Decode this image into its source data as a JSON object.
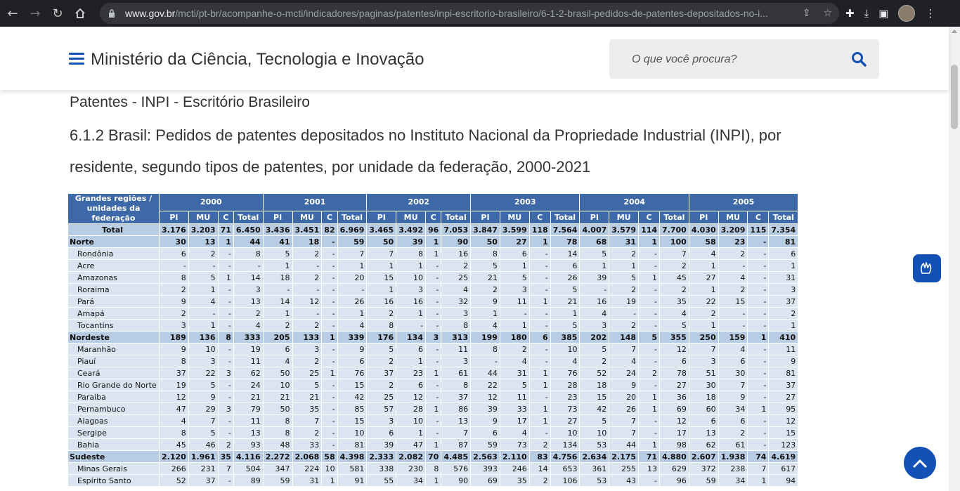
{
  "browser": {
    "url_host": "www.gov.br",
    "url_path": "/mcti/pt-br/acompanhe-o-mcti/indicadores/paginas/patentes/inpi-escritorio-brasileiro/6-1-2-brasil-pedidos-de-patentes-depositados-no-i..."
  },
  "header": {
    "site_title": "Ministério da Ciência, Tecnologia e Inovação",
    "search_placeholder": "O que você procura?"
  },
  "page": {
    "section_title": "Patentes - INPI - Escritório Brasileiro",
    "heading": "6.1.2  Brasil: Pedidos de patentes depositados no Instituto Nacional da Propriedade Industrial (INPI), por residente, segundo tipos de patentes, por unidade da federação, 2000-2021"
  },
  "table": {
    "row_header": "Grandes regiões / unidades da federação",
    "years": [
      "2000",
      "2001",
      "2002",
      "2003",
      "2004",
      "2005"
    ],
    "subcols": [
      "PI",
      "MU",
      "C",
      "Total"
    ],
    "rows": [
      {
        "label": "Total",
        "type": "total",
        "values": [
          "3.176",
          "3.203",
          "71",
          "6.450",
          "3.436",
          "3.451",
          "82",
          "6.969",
          "3.465",
          "3.492",
          "96",
          "7.053",
          "3.847",
          "3.599",
          "118",
          "7.564",
          "4.007",
          "3.579",
          "114",
          "7.700",
          "4.030",
          "3.209",
          "115",
          "7.354"
        ]
      },
      {
        "label": "Norte",
        "type": "region",
        "values": [
          "30",
          "13",
          "1",
          "44",
          "41",
          "18",
          "-",
          "59",
          "50",
          "39",
          "1",
          "90",
          "50",
          "27",
          "1",
          "78",
          "68",
          "31",
          "1",
          "100",
          "58",
          "23",
          "-",
          "81"
        ]
      },
      {
        "label": "Rondônia",
        "type": "state",
        "values": [
          "6",
          "2",
          "-",
          "8",
          "5",
          "2",
          "-",
          "7",
          "7",
          "8",
          "1",
          "16",
          "8",
          "6",
          "-",
          "14",
          "5",
          "2",
          "-",
          "7",
          "4",
          "2",
          "-",
          "6"
        ]
      },
      {
        "label": "Acre",
        "type": "state",
        "values": [
          "-",
          "-",
          "-",
          "-",
          "1",
          "-",
          "-",
          "1",
          "1",
          "1",
          "-",
          "2",
          "5",
          "1",
          "-",
          "6",
          "1",
          "1",
          "-",
          "2",
          "1",
          "-",
          "-",
          "1"
        ]
      },
      {
        "label": "Amazonas",
        "type": "state",
        "values": [
          "8",
          "5",
          "1",
          "14",
          "18",
          "2",
          "-",
          "20",
          "15",
          "10",
          "-",
          "25",
          "21",
          "5",
          "-",
          "26",
          "39",
          "5",
          "1",
          "45",
          "27",
          "4",
          "-",
          "31"
        ]
      },
      {
        "label": "Roraima",
        "type": "state",
        "values": [
          "2",
          "1",
          "-",
          "3",
          "-",
          "-",
          "-",
          "-",
          "1",
          "3",
          "-",
          "4",
          "2",
          "3",
          "-",
          "5",
          "-",
          "2",
          "-",
          "2",
          "1",
          "2",
          "-",
          "3"
        ]
      },
      {
        "label": "Pará",
        "type": "state",
        "values": [
          "9",
          "4",
          "-",
          "13",
          "14",
          "12",
          "-",
          "26",
          "16",
          "16",
          "-",
          "32",
          "9",
          "11",
          "1",
          "21",
          "16",
          "19",
          "-",
          "35",
          "22",
          "15",
          "-",
          "37"
        ]
      },
      {
        "label": "Amapá",
        "type": "state",
        "values": [
          "2",
          "-",
          "-",
          "2",
          "1",
          "-",
          "-",
          "1",
          "2",
          "1",
          "-",
          "3",
          "1",
          "-",
          "-",
          "1",
          "4",
          "-",
          "-",
          "4",
          "2",
          "-",
          "-",
          "2"
        ]
      },
      {
        "label": "Tocantins",
        "type": "state",
        "values": [
          "3",
          "1",
          "-",
          "4",
          "2",
          "2",
          "-",
          "4",
          "8",
          "-",
          "-",
          "8",
          "4",
          "1",
          "-",
          "5",
          "3",
          "2",
          "-",
          "5",
          "1",
          "-",
          "-",
          "1"
        ]
      },
      {
        "label": "Nordeste",
        "type": "region",
        "values": [
          "189",
          "136",
          "8",
          "333",
          "205",
          "133",
          "1",
          "339",
          "176",
          "134",
          "3",
          "313",
          "199",
          "180",
          "6",
          "385",
          "202",
          "148",
          "5",
          "355",
          "250",
          "159",
          "1",
          "410"
        ]
      },
      {
        "label": "Maranhão",
        "type": "state",
        "values": [
          "9",
          "10",
          "-",
          "19",
          "6",
          "3",
          "-",
          "9",
          "5",
          "6",
          "-",
          "11",
          "8",
          "2",
          "-",
          "10",
          "5",
          "7",
          "-",
          "12",
          "7",
          "4",
          "-",
          "11"
        ]
      },
      {
        "label": "Piauí",
        "type": "state",
        "values": [
          "8",
          "3",
          "-",
          "11",
          "4",
          "2",
          "-",
          "6",
          "2",
          "1",
          "-",
          "3",
          "-",
          "4",
          "-",
          "4",
          "2",
          "4",
          "-",
          "6",
          "3",
          "6",
          "-",
          "9"
        ]
      },
      {
        "label": "Ceará",
        "type": "state",
        "values": [
          "37",
          "22",
          "3",
          "62",
          "50",
          "25",
          "1",
          "76",
          "37",
          "23",
          "1",
          "61",
          "44",
          "31",
          "1",
          "76",
          "52",
          "24",
          "2",
          "78",
          "51",
          "30",
          "-",
          "81"
        ]
      },
      {
        "label": "Rio Grande do Norte",
        "type": "state",
        "values": [
          "19",
          "5",
          "-",
          "24",
          "10",
          "5",
          "-",
          "15",
          "2",
          "6",
          "-",
          "8",
          "22",
          "5",
          "1",
          "28",
          "18",
          "9",
          "-",
          "27",
          "30",
          "7",
          "-",
          "37"
        ]
      },
      {
        "label": "Paraíba",
        "type": "state",
        "values": [
          "12",
          "9",
          "-",
          "21",
          "21",
          "21",
          "-",
          "42",
          "25",
          "12",
          "-",
          "37",
          "12",
          "11",
          "-",
          "23",
          "15",
          "20",
          "1",
          "36",
          "18",
          "9",
          "-",
          "27"
        ]
      },
      {
        "label": "Pernambuco",
        "type": "state",
        "values": [
          "47",
          "29",
          "3",
          "79",
          "50",
          "35",
          "-",
          "85",
          "57",
          "28",
          "1",
          "86",
          "39",
          "33",
          "1",
          "73",
          "42",
          "26",
          "1",
          "69",
          "60",
          "34",
          "1",
          "95"
        ]
      },
      {
        "label": "Alagoas",
        "type": "state",
        "values": [
          "4",
          "7",
          "-",
          "11",
          "8",
          "7",
          "-",
          "15",
          "3",
          "10",
          "-",
          "13",
          "9",
          "17",
          "1",
          "27",
          "5",
          "7",
          "-",
          "12",
          "6",
          "6",
          "-",
          "12"
        ]
      },
      {
        "label": "Sergipe",
        "type": "state",
        "values": [
          "8",
          "5",
          "-",
          "13",
          "8",
          "2",
          "-",
          "10",
          "6",
          "1",
          "-",
          "7",
          "6",
          "4",
          "-",
          "10",
          "10",
          "7",
          "-",
          "17",
          "13",
          "2",
          "-",
          "15"
        ]
      },
      {
        "label": "Bahia",
        "type": "state",
        "values": [
          "45",
          "46",
          "2",
          "93",
          "48",
          "33",
          "-",
          "81",
          "39",
          "47",
          "1",
          "87",
          "59",
          "73",
          "2",
          "134",
          "53",
          "44",
          "1",
          "98",
          "62",
          "61",
          "-",
          "123"
        ]
      },
      {
        "label": "Sudeste",
        "type": "region",
        "values": [
          "2.120",
          "1.961",
          "35",
          "4.116",
          "2.272",
          "2.068",
          "58",
          "4.398",
          "2.333",
          "2.082",
          "70",
          "4.485",
          "2.563",
          "2.110",
          "83",
          "4.756",
          "2.634",
          "2.175",
          "71",
          "4.880",
          "2.607",
          "1.938",
          "74",
          "4.619"
        ]
      },
      {
        "label": "Minas Gerais",
        "type": "state",
        "values": [
          "266",
          "231",
          "7",
          "504",
          "347",
          "224",
          "10",
          "581",
          "338",
          "230",
          "8",
          "576",
          "393",
          "246",
          "14",
          "653",
          "361",
          "255",
          "13",
          "629",
          "372",
          "238",
          "7",
          "617"
        ]
      },
      {
        "label": "Espírito Santo",
        "type": "state",
        "values": [
          "52",
          "37",
          "-",
          "89",
          "59",
          "31",
          "1",
          "91",
          "55",
          "34",
          "1",
          "90",
          "69",
          "35",
          "2",
          "106",
          "53",
          "43",
          "-",
          "96",
          "59",
          "34",
          "1",
          "94"
        ]
      }
    ]
  }
}
